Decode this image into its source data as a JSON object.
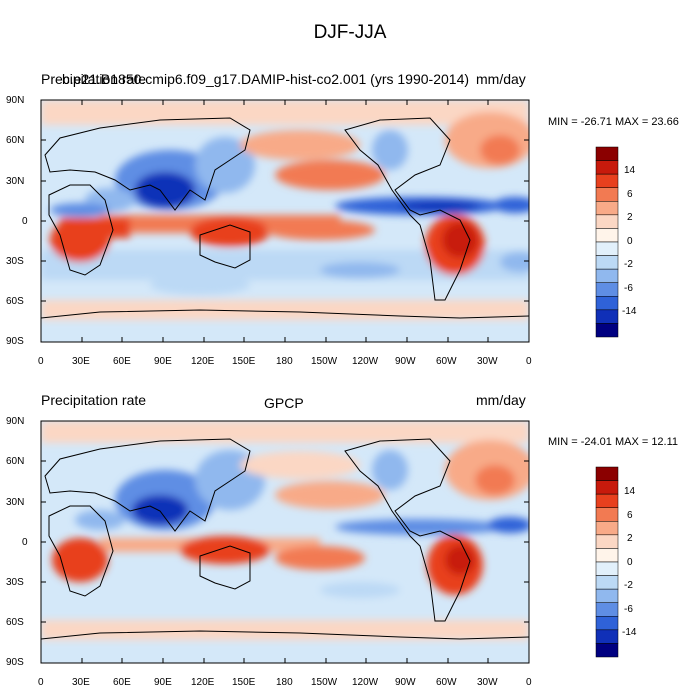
{
  "figure": {
    "title": "DJF-JJA"
  },
  "panels": [
    {
      "left_label": "Precipitation rate",
      "center_label": "cam6_3_111_f2000_nofgnv_ne30pg3_T18",
      "case_label": "b.e21.B1850.cmip6.f09_g17.DAMIP-hist-co2.001 (yrs 1990-2014)",
      "units": "mm/day",
      "min_max": "MIN = -26.71 MAX =  23.66"
    },
    {
      "left_label": "Precipitation rate",
      "center_label": "GPCP",
      "case_label": "",
      "units": "mm/day",
      "min_max": "MIN = -24.01 MAX =  12.11"
    }
  ],
  "axes": {
    "lat_ticks": [
      "90N",
      "60N",
      "30N",
      "0",
      "30S",
      "60S",
      "90S"
    ],
    "lon_ticks": [
      "0",
      "30E",
      "60E",
      "90E",
      "120E",
      "150E",
      "180",
      "150W",
      "120W",
      "90W",
      "60W",
      "30W",
      "0"
    ]
  },
  "colorbar": {
    "labels": [
      "14",
      "6",
      "2",
      "0",
      "-2",
      "-6",
      "-14"
    ],
    "colors": [
      "#8b0000",
      "#c81a0c",
      "#e8401e",
      "#f27a52",
      "#f8aa88",
      "#fbd7c4",
      "#fff4ea",
      "#e2f0fb",
      "#bcd9f5",
      "#90b8ee",
      "#5f8ee4",
      "#2f62d8",
      "#1030b8",
      "#000080"
    ]
  },
  "colors": {
    "ocean_base": "#d4e8f9",
    "frame": "#000000",
    "coast": "#000000"
  }
}
